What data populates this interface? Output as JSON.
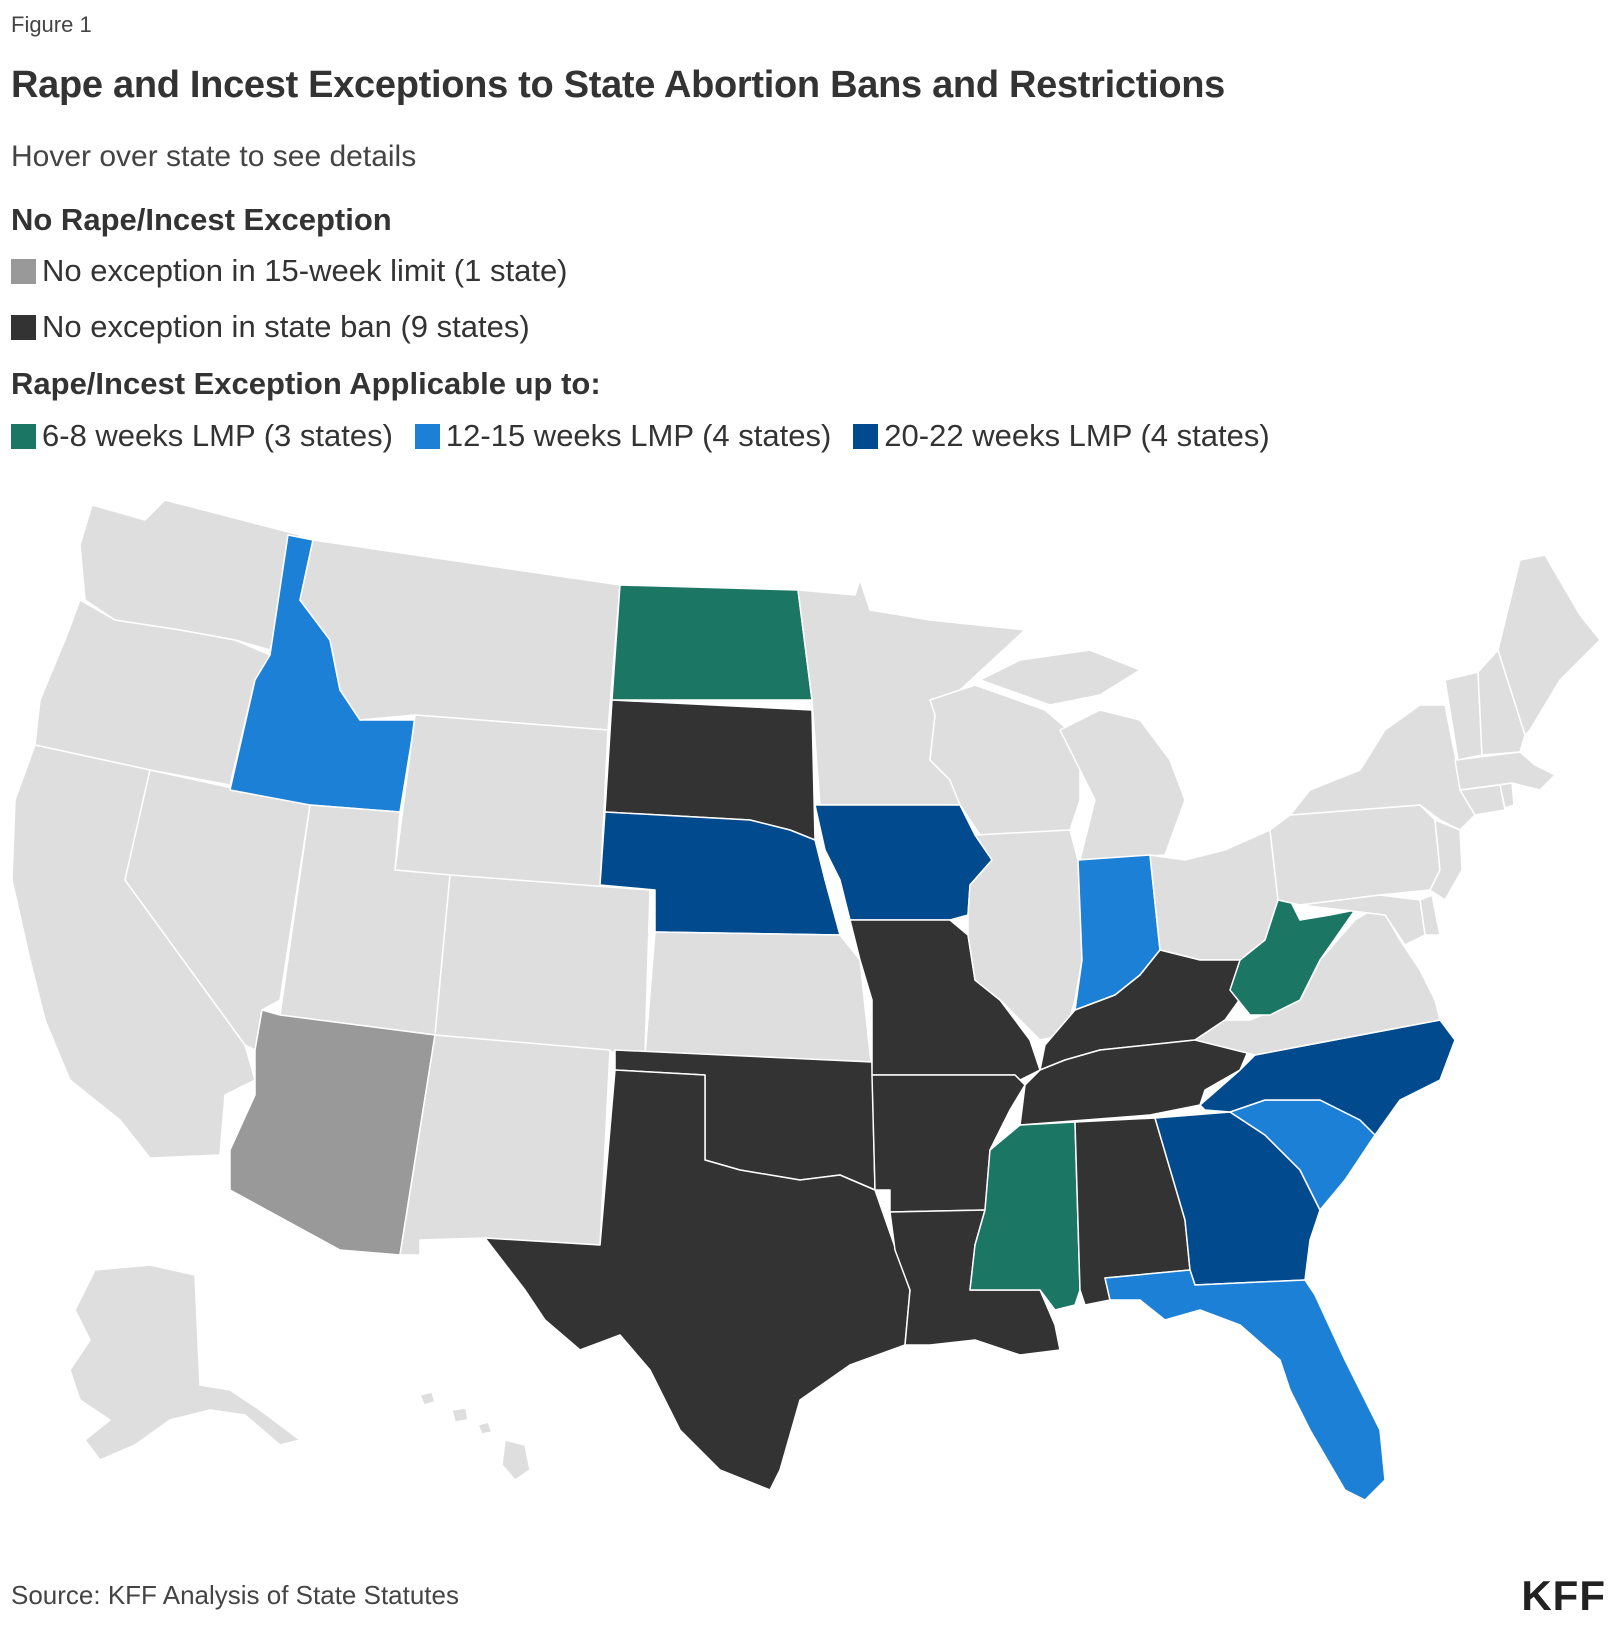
{
  "figure_label": "Figure 1",
  "title": "Rape and Incest Exceptions to State Abortion Bans and Restrictions",
  "subtitle": "Hover over state to see details",
  "legend": {
    "group1_heading": "No Rape/Incest Exception",
    "group1_items": [
      {
        "label": "No exception in 15-week limit (1 state)",
        "color": "#999999"
      },
      {
        "label": "No exception in state ban (9 states)",
        "color": "#333333"
      }
    ],
    "group2_heading": "Rape/Incest Exception Applicable up to:",
    "group2_items": [
      {
        "label": "6-8 weeks LMP (3 states)",
        "color": "#1b7663"
      },
      {
        "label": "12-15 weeks LMP (4 states)",
        "color": "#1b80d6"
      },
      {
        "label": "20-22 weeks LMP (4 states)",
        "color": "#004a8d"
      }
    ]
  },
  "map": {
    "default_color": "#dedede",
    "categories": {
      "no-15wk": "#999999",
      "no-ban": "#333333",
      "6-8wk": "#1b7663",
      "12-15wk": "#1b80d6",
      "20-22wk": "#004a8d"
    },
    "states": [
      {
        "id": "WA",
        "cat": "none"
      },
      {
        "id": "OR",
        "cat": "none"
      },
      {
        "id": "CA",
        "cat": "none"
      },
      {
        "id": "NV",
        "cat": "none"
      },
      {
        "id": "ID",
        "cat": "12-15wk"
      },
      {
        "id": "MT",
        "cat": "none"
      },
      {
        "id": "WY",
        "cat": "none"
      },
      {
        "id": "UT",
        "cat": "none"
      },
      {
        "id": "AZ",
        "cat": "no-15wk"
      },
      {
        "id": "CO",
        "cat": "none"
      },
      {
        "id": "NM",
        "cat": "none"
      },
      {
        "id": "ND",
        "cat": "6-8wk"
      },
      {
        "id": "SD",
        "cat": "no-ban"
      },
      {
        "id": "NE",
        "cat": "20-22wk"
      },
      {
        "id": "KS",
        "cat": "none"
      },
      {
        "id": "OK",
        "cat": "no-ban"
      },
      {
        "id": "TX",
        "cat": "no-ban"
      },
      {
        "id": "MN",
        "cat": "none"
      },
      {
        "id": "IA",
        "cat": "20-22wk"
      },
      {
        "id": "MO",
        "cat": "no-ban"
      },
      {
        "id": "AR",
        "cat": "no-ban"
      },
      {
        "id": "LA",
        "cat": "no-ban"
      },
      {
        "id": "WI",
        "cat": "none"
      },
      {
        "id": "IL",
        "cat": "none"
      },
      {
        "id": "MI",
        "cat": "none"
      },
      {
        "id": "IN",
        "cat": "12-15wk"
      },
      {
        "id": "OH",
        "cat": "none"
      },
      {
        "id": "KY",
        "cat": "no-ban"
      },
      {
        "id": "TN",
        "cat": "no-ban"
      },
      {
        "id": "MS",
        "cat": "6-8wk"
      },
      {
        "id": "AL",
        "cat": "no-ban"
      },
      {
        "id": "GA",
        "cat": "20-22wk"
      },
      {
        "id": "FL",
        "cat": "12-15wk"
      },
      {
        "id": "SC",
        "cat": "12-15wk"
      },
      {
        "id": "NC",
        "cat": "20-22wk"
      },
      {
        "id": "VA",
        "cat": "none"
      },
      {
        "id": "WV",
        "cat": "6-8wk"
      },
      {
        "id": "PA",
        "cat": "none"
      },
      {
        "id": "NY",
        "cat": "none"
      },
      {
        "id": "NJ",
        "cat": "none"
      },
      {
        "id": "DE",
        "cat": "none"
      },
      {
        "id": "MD",
        "cat": "none"
      },
      {
        "id": "CT",
        "cat": "none"
      },
      {
        "id": "RI",
        "cat": "none"
      },
      {
        "id": "MA",
        "cat": "none"
      },
      {
        "id": "VT",
        "cat": "none"
      },
      {
        "id": "NH",
        "cat": "none"
      },
      {
        "id": "ME",
        "cat": "none"
      },
      {
        "id": "AK",
        "cat": "none"
      },
      {
        "id": "HI",
        "cat": "none"
      }
    ]
  },
  "source": "Source: KFF Analysis of State Statutes",
  "logo": "KFF"
}
